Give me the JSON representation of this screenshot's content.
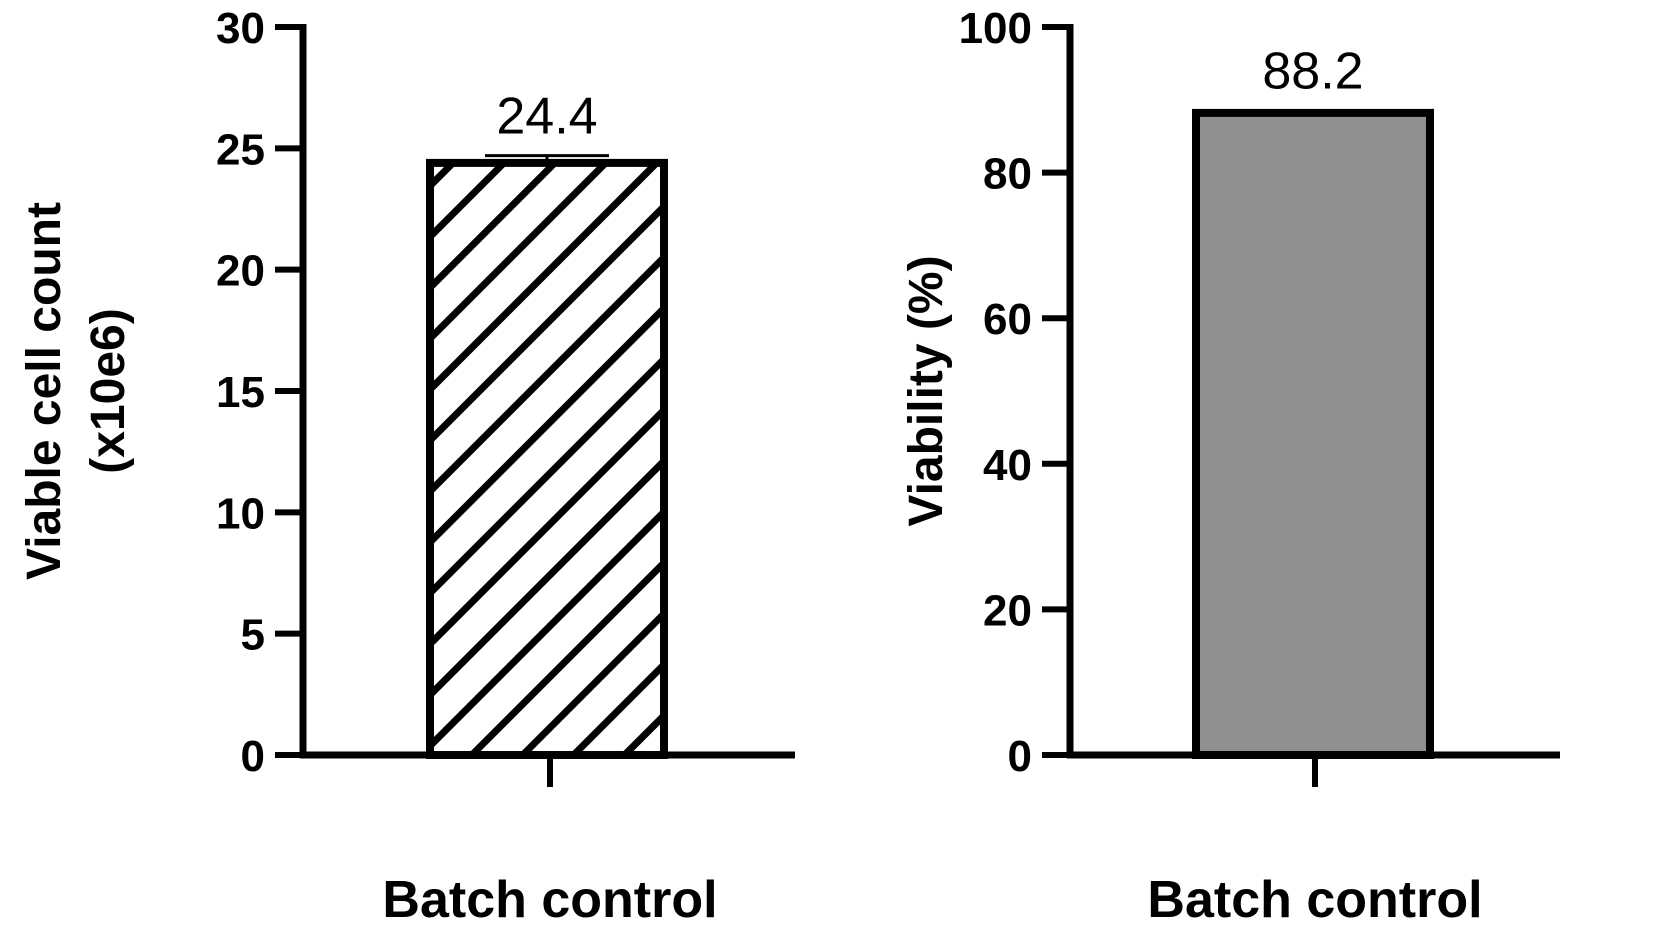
{
  "chart_data": [
    {
      "type": "bar",
      "categories": [
        "Batch control"
      ],
      "values": [
        24.4
      ],
      "error": [
        0.3
      ],
      "data_labels": [
        "24.4"
      ],
      "ylabel_lines": [
        "Viable cell count",
        "(x10e6)"
      ],
      "ylim": [
        0,
        30
      ],
      "yticks": [
        0,
        5,
        10,
        15,
        20,
        25,
        30
      ],
      "fill": "hatch",
      "grid": false
    },
    {
      "type": "bar",
      "categories": [
        "Batch control"
      ],
      "values": [
        88.2
      ],
      "error": [
        0.3
      ],
      "data_labels": [
        "88.2"
      ],
      "ylabel_lines": [
        "Viability (%)"
      ],
      "ylim": [
        0,
        100
      ],
      "yticks": [
        0,
        20,
        40,
        60,
        80,
        100
      ],
      "fill": "#8f8f8f",
      "grid": false
    }
  ],
  "colors": {
    "axis": "#000000",
    "bar_outline": "#000000",
    "bar_fill_gray": "#8f8f8f"
  }
}
